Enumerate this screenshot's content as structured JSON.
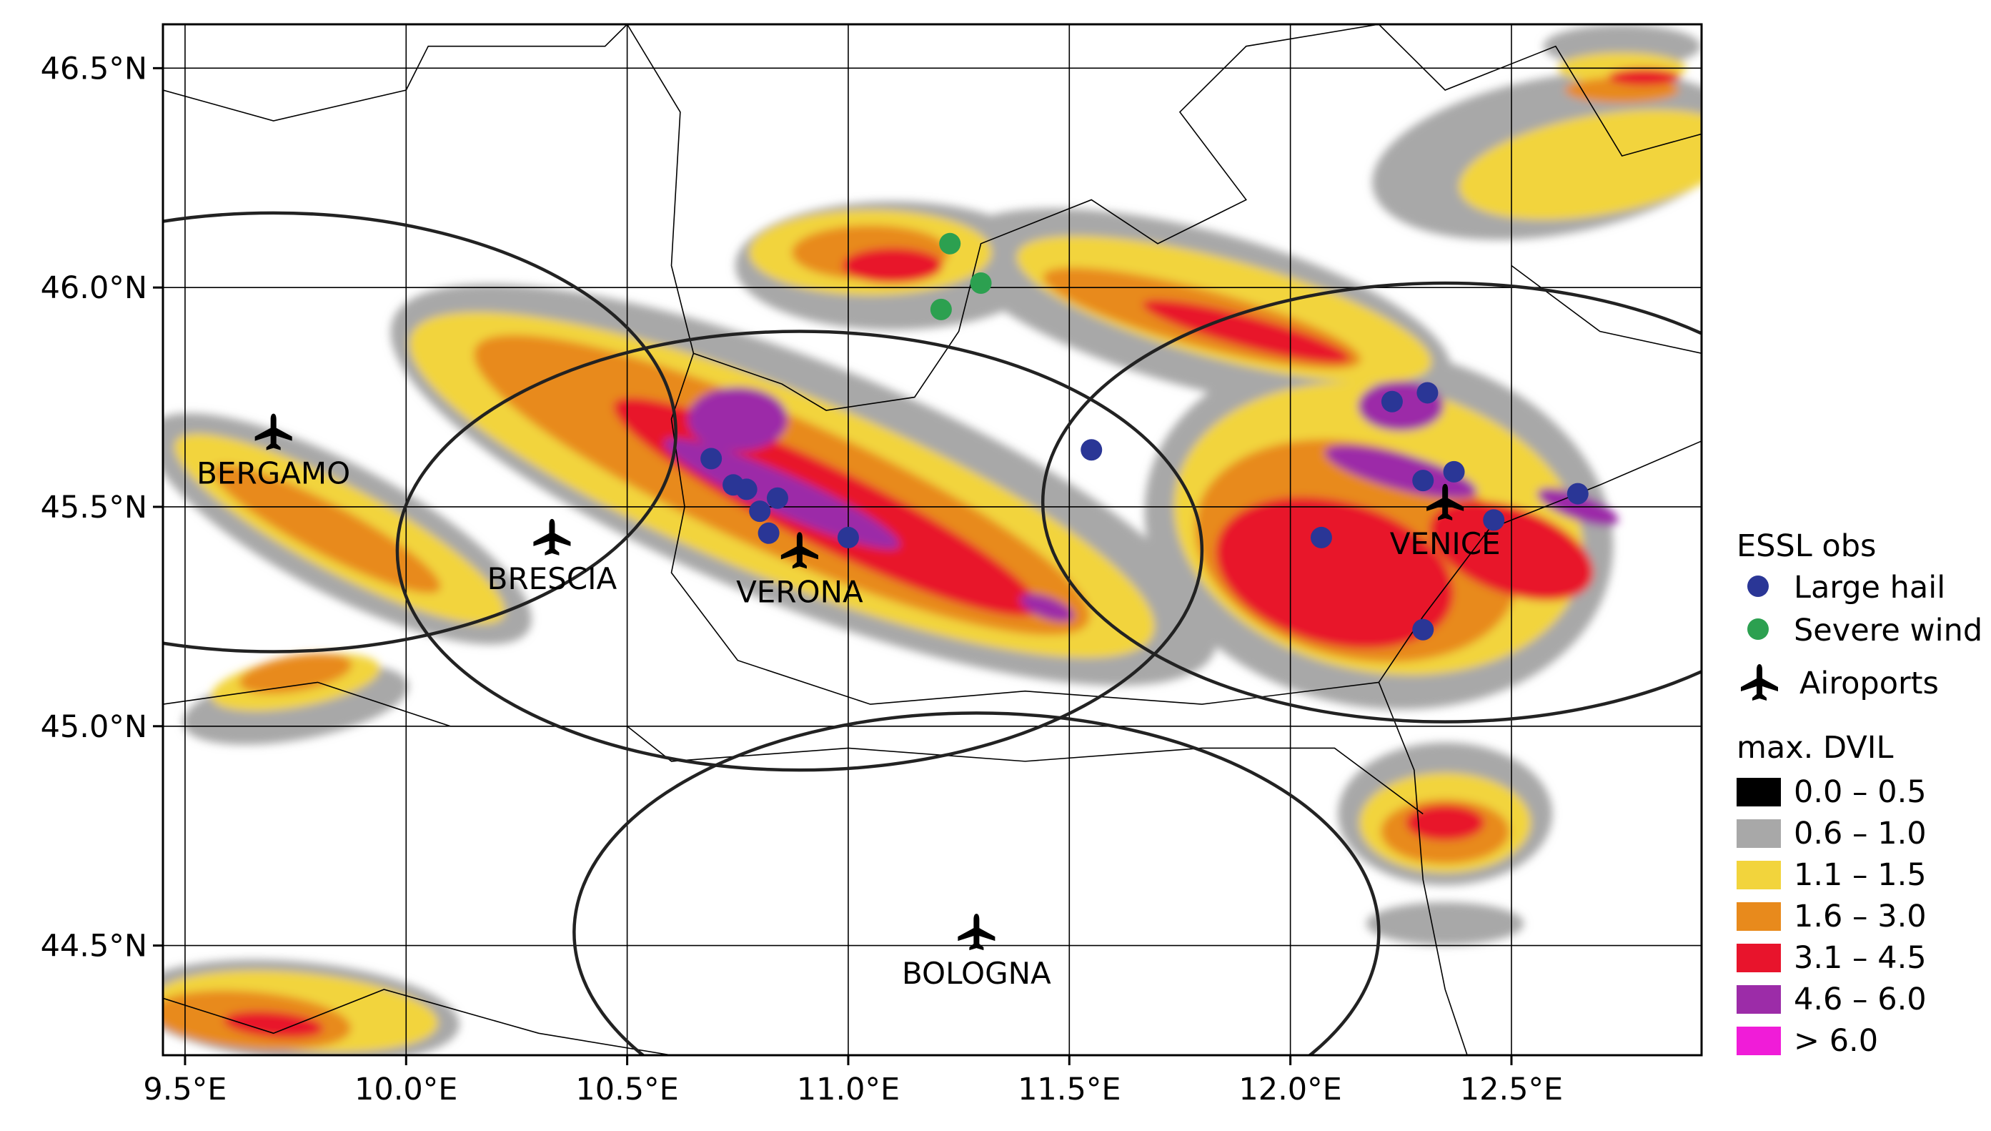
{
  "chart_data": {
    "type": "map",
    "x_axis": {
      "range": [
        9.45,
        12.93
      ],
      "ticks": [
        {
          "value": 9.5,
          "label": "9.5°E"
        },
        {
          "value": 10.0,
          "label": "10.0°E"
        },
        {
          "value": 10.5,
          "label": "10.5°E"
        },
        {
          "value": 11.0,
          "label": "11.0°E"
        },
        {
          "value": 11.5,
          "label": "11.5°E"
        },
        {
          "value": 12.0,
          "label": "12.0°E"
        },
        {
          "value": 12.5,
          "label": "12.5°E"
        }
      ]
    },
    "y_axis": {
      "range": [
        44.25,
        46.6
      ],
      "ticks": [
        {
          "value": 46.5,
          "label": "46.5°N"
        },
        {
          "value": 46.0,
          "label": "46.0°N"
        },
        {
          "value": 45.5,
          "label": "45.5°N"
        },
        {
          "value": 45.0,
          "label": "45.0°N"
        },
        {
          "value": 44.5,
          "label": "44.5°N"
        }
      ]
    },
    "grid": true,
    "airports": [
      {
        "name": "BERGAMO",
        "lon": 9.7,
        "lat": 45.67
      },
      {
        "name": "BRESCIA",
        "lon": 10.33,
        "lat": 45.43
      },
      {
        "name": "VERONA",
        "lon": 10.89,
        "lat": 45.4
      },
      {
        "name": "VENICE",
        "lon": 12.35,
        "lat": 45.51
      },
      {
        "name": "BOLOGNA",
        "lon": 11.29,
        "lat": 44.53
      }
    ],
    "radar_circles": [
      {
        "name": "BERGAMO",
        "lon": 9.7,
        "lat": 45.67
      },
      {
        "name": "VERONA",
        "lon": 10.89,
        "lat": 45.4
      },
      {
        "name": "VENICE",
        "lon": 12.35,
        "lat": 45.51
      },
      {
        "name": "BOLOGNA",
        "lon": 11.29,
        "lat": 44.53
      }
    ],
    "essl_obs": {
      "large_hail": [
        {
          "lon": 10.69,
          "lat": 45.61
        },
        {
          "lon": 10.74,
          "lat": 45.55
        },
        {
          "lon": 10.77,
          "lat": 45.54
        },
        {
          "lon": 10.8,
          "lat": 45.49
        },
        {
          "lon": 10.82,
          "lat": 45.44
        },
        {
          "lon": 10.84,
          "lat": 45.52
        },
        {
          "lon": 11.0,
          "lat": 45.43
        },
        {
          "lon": 11.55,
          "lat": 45.63
        },
        {
          "lon": 12.07,
          "lat": 45.43
        },
        {
          "lon": 12.23,
          "lat": 45.74
        },
        {
          "lon": 12.31,
          "lat": 45.76
        },
        {
          "lon": 12.3,
          "lat": 45.56
        },
        {
          "lon": 12.37,
          "lat": 45.58
        },
        {
          "lon": 12.46,
          "lat": 45.47
        },
        {
          "lon": 12.65,
          "lat": 45.53
        },
        {
          "lon": 12.3,
          "lat": 45.22
        }
      ],
      "severe_wind": [
        {
          "lon": 11.23,
          "lat": 46.1
        },
        {
          "lon": 11.3,
          "lat": 46.01
        },
        {
          "lon": 11.21,
          "lat": 45.95
        }
      ]
    },
    "legend": {
      "essl_title": "ESSL obs",
      "large_hail_label": "Large hail",
      "severe_wind_label": "Severe wind",
      "airports_label": "Airoports",
      "dvil_title": "max. DVIL",
      "dvil_classes": [
        {
          "label": "0.0 – 0.5",
          "color": "#000000"
        },
        {
          "label": "0.6 – 1.0",
          "color": "#a8a8a8"
        },
        {
          "label": "1.1 – 1.5",
          "color": "#f2d43c"
        },
        {
          "label": "1.6 – 3.0",
          "color": "#e88a1c"
        },
        {
          "label": "3.1 – 4.5",
          "color": "#e8142c"
        },
        {
          "label": "4.6 – 6.0",
          "color": "#9c2ca8"
        },
        {
          "label": "> 6.0",
          "color": "#f01cd8"
        }
      ]
    },
    "colors": {
      "large_hail": "#2a3696",
      "severe_wind": "#2ca050",
      "grid": "#000000"
    }
  }
}
